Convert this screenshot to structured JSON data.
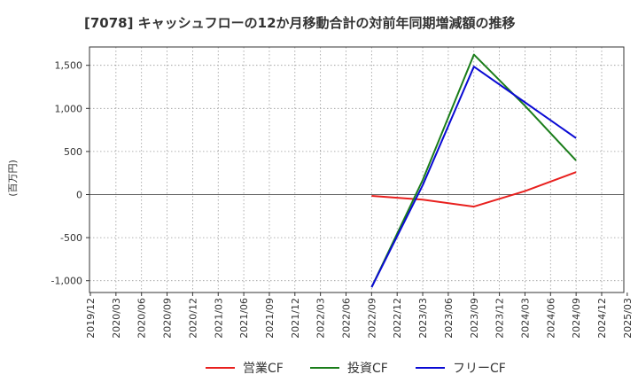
{
  "chart_data": {
    "type": "line",
    "title": "[7078]  キャッシュフローの12か月移動合計の対前年同期増減額の推移",
    "ylabel": "(百万円)",
    "xlabel": "",
    "ylim": [
      -1100,
      1700
    ],
    "yticks": [
      1500,
      1000,
      500,
      0,
      -500,
      -1000
    ],
    "ytick_labels": [
      "1,500",
      "1,000",
      "500",
      "0",
      "-500",
      "-1,000"
    ],
    "x_ticks": [
      "2019/12",
      "2020/03",
      "2020/06",
      "2020/09",
      "2020/12",
      "2021/03",
      "2021/06",
      "2021/09",
      "2021/12",
      "2022/03",
      "2022/06",
      "2022/09",
      "2022/12",
      "2023/03",
      "2023/06",
      "2023/09",
      "2023/12",
      "2024/03",
      "2024/06",
      "2024/09",
      "2024/12",
      "2025/03"
    ],
    "grid": true,
    "series": [
      {
        "name": "営業CF",
        "color": "#e8201e",
        "x": [
          "2022/09",
          "2023/03",
          "2023/09",
          "2024/03",
          "2024/09"
        ],
        "values": [
          -15,
          -60,
          -140,
          40,
          260
        ]
      },
      {
        "name": "投資CF",
        "color": "#1a7d1a",
        "x": [
          "2022/09",
          "2023/03",
          "2023/09",
          "2024/03",
          "2024/09"
        ],
        "values": [
          -1075,
          170,
          1625,
          1030,
          395
        ]
      },
      {
        "name": "フリーCF",
        "color": "#0a0ad4",
        "x": [
          "2022/09",
          "2023/03",
          "2023/09",
          "2024/03",
          "2024/09"
        ],
        "values": [
          -1075,
          110,
          1485,
          1070,
          655
        ]
      }
    ]
  }
}
